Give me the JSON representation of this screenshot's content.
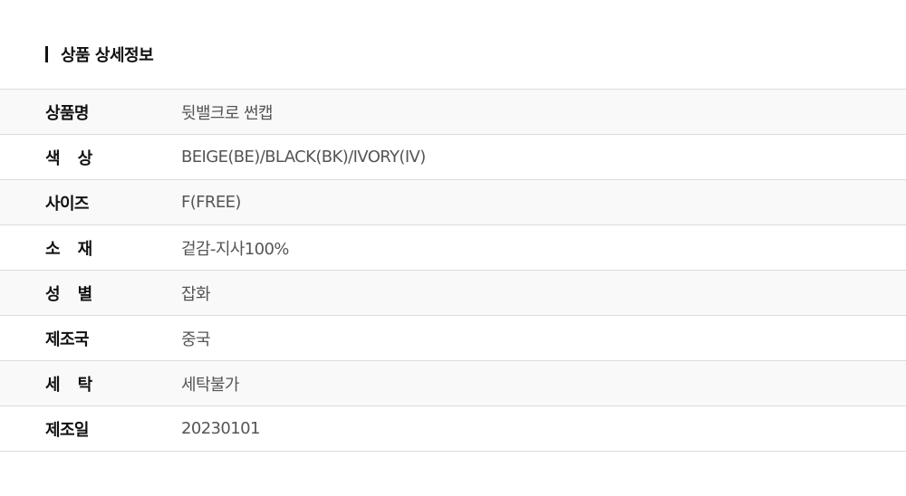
{
  "section_title": "상품 상세정보",
  "rows": [
    {
      "label": "상품명",
      "value": "뒷밸크로 썬캡"
    },
    {
      "label": "색 상",
      "value": "BEIGE(BE)/BLACK(BK)/IVORY(IV)"
    },
    {
      "label": "사이즈",
      "value": "F(FREE)"
    },
    {
      "label": "소 재",
      "value": "겉감-지사100%"
    },
    {
      "label": "성 별",
      "value": "잡화"
    },
    {
      "label": "제조국",
      "value": "중국"
    },
    {
      "label": "세 탁",
      "value": "세탁불가"
    },
    {
      "label": "제조일",
      "value": "20230101"
    }
  ]
}
